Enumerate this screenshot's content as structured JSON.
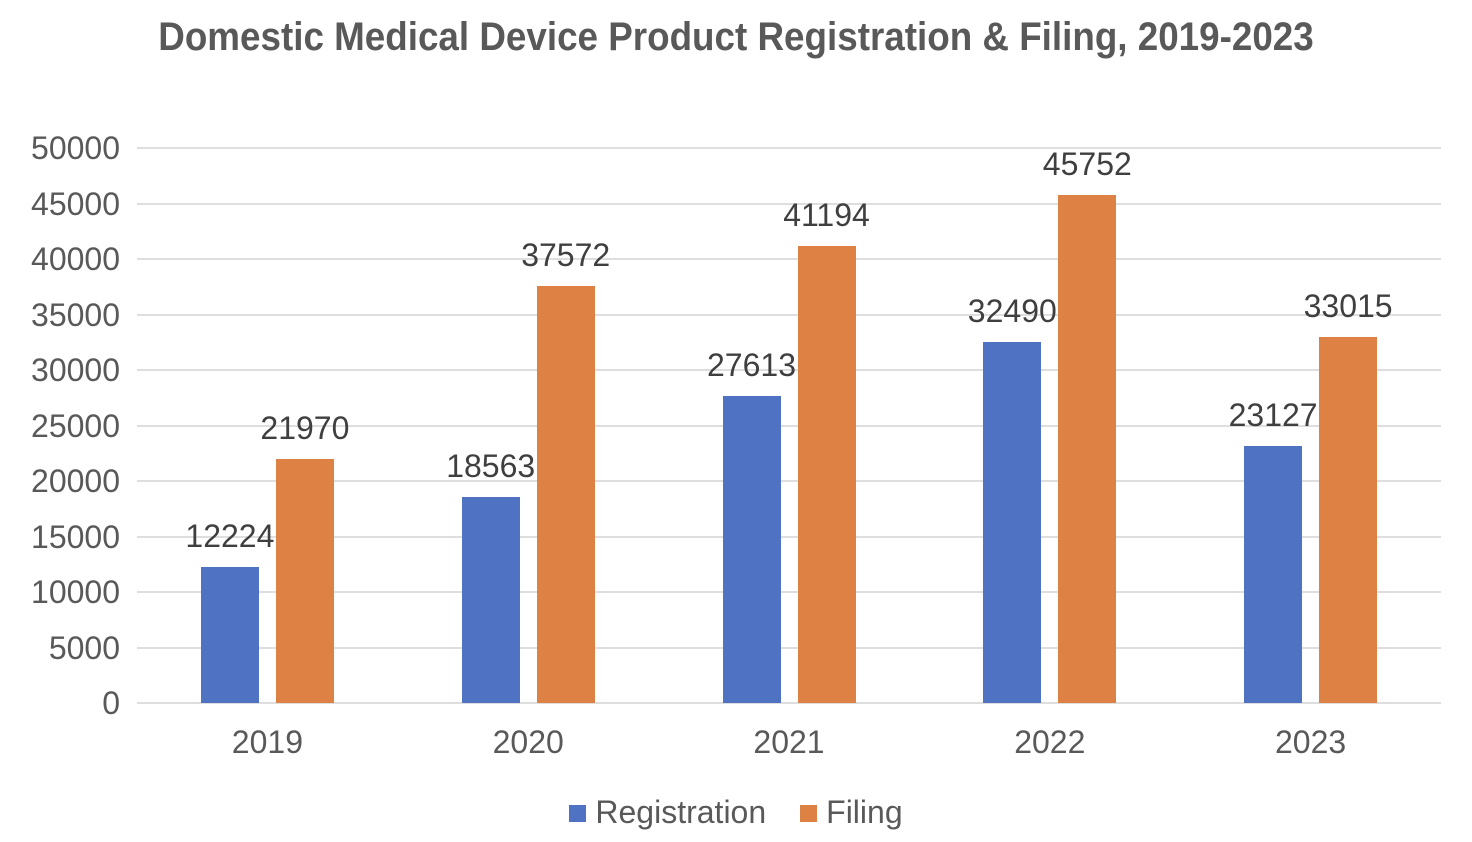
{
  "chart_data": {
    "type": "bar",
    "title": "Domestic Medical Device Product Registration & Filing, 2019-2023",
    "categories": [
      "2019",
      "2020",
      "2021",
      "2022",
      "2023"
    ],
    "series": [
      {
        "name": "Registration",
        "color": "#4F73C2",
        "values": [
          12224,
          18563,
          27613,
          32490,
          23127
        ]
      },
      {
        "name": "Filing",
        "color": "#DD8244",
        "values": [
          21970,
          37572,
          41194,
          45752,
          33015
        ]
      }
    ],
    "ylim": [
      0,
      50000
    ],
    "ytick_step": 5000,
    "y_tick_labels": [
      "0",
      "5000",
      "10000",
      "15000",
      "20000",
      "25000",
      "30000",
      "35000",
      "40000",
      "45000",
      "50000"
    ],
    "grid": true,
    "data_labels": true,
    "legend_position": "bottom"
  },
  "colors": {
    "gridline": "#DEDEDE",
    "title_text": "#595959",
    "axis_text": "#595959",
    "data_label_text": "#3F3F3F",
    "background": "#FFFFFF"
  }
}
